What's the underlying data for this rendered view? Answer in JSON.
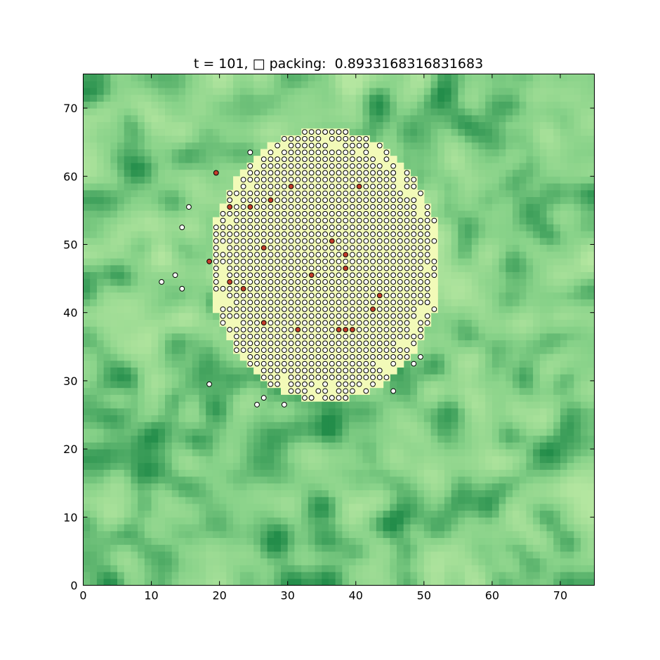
{
  "chart_data": {
    "type": "scatter",
    "title": "t = 101, □ packing:  0.8933168316831683",
    "xlabel": "",
    "ylabel": "",
    "xlim": [
      0,
      75
    ],
    "ylim": [
      0,
      75
    ],
    "x_ticks": [
      0,
      10,
      20,
      30,
      40,
      50,
      60,
      70
    ],
    "y_ticks": [
      0,
      10,
      20,
      30,
      40,
      50,
      60,
      70
    ],
    "grid": false,
    "legend": "none",
    "background": "heatmap",
    "colors": {
      "heat_low": "#f2fab8",
      "heat_mid": "#86d188",
      "heat_high": "#238d4a",
      "particle": "#ffffff",
      "particle_marked": "#c43d2b",
      "edge": "#000000"
    },
    "clump": {
      "center": [
        35.5,
        47
      ],
      "radius_x": 17,
      "radius_y": 20,
      "grid_step": 1
    },
    "series": [
      {
        "kind": "particles",
        "points": [
          [
            11.5,
            44.5
          ],
          [
            13.5,
            45.5
          ],
          [
            14.5,
            43.5
          ],
          [
            14.5,
            52.5
          ],
          [
            15.5,
            55.5
          ],
          [
            18.5,
            29.5
          ],
          [
            25.5,
            26.5
          ],
          [
            26.5,
            27.5
          ],
          [
            29.5,
            26.5
          ],
          [
            24.5,
            63.5
          ],
          [
            32.5,
            66.5
          ],
          [
            35.5,
            66.5
          ],
          [
            37.5,
            66.5
          ],
          [
            38.5,
            66.5
          ],
          [
            41.5,
            64.5
          ],
          [
            45.5,
            60.5
          ],
          [
            47.5,
            59.5
          ],
          [
            48.5,
            56.5
          ],
          [
            50.5,
            51.5
          ],
          [
            50.5,
            41.5
          ],
          [
            50.5,
            38.5
          ],
          [
            49.5,
            37.5
          ],
          [
            49.5,
            33.5
          ],
          [
            48.5,
            32.5
          ],
          [
            45.5,
            28.5
          ],
          [
            33.5,
            27.5
          ],
          [
            36.5,
            27.5
          ],
          [
            38.5,
            27.5
          ]
        ]
      },
      {
        "kind": "marked_particles",
        "points": [
          [
            19.5,
            60.5
          ],
          [
            21.5,
            55.5
          ],
          [
            24.5,
            55.5
          ],
          [
            27.5,
            56.5
          ],
          [
            30.5,
            58.5
          ],
          [
            40.5,
            58.5
          ],
          [
            18.5,
            47.5
          ],
          [
            26.5,
            49.5
          ],
          [
            36.5,
            50.5
          ],
          [
            38.5,
            48.5
          ],
          [
            38.5,
            46.5
          ],
          [
            33.5,
            45.5
          ],
          [
            21.5,
            44.5
          ],
          [
            23.5,
            43.5
          ],
          [
            43.5,
            42.5
          ],
          [
            42.5,
            40.5
          ],
          [
            31.5,
            37.5
          ],
          [
            37.5,
            37.5
          ],
          [
            38.5,
            37.5
          ],
          [
            39.5,
            37.5
          ],
          [
            26.5,
            38.5
          ]
        ]
      }
    ]
  }
}
